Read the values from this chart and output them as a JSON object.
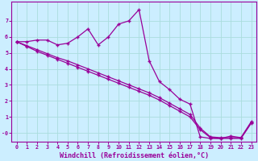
{
  "line_color": "#990099",
  "bg_color": "#cceeff",
  "grid_color": "#aadddd",
  "marker": "+",
  "markersize": 3.5,
  "linewidth": 0.9,
  "bg_color2": "#cce8e8",
  "xlim": [
    -0.5,
    23.5
  ],
  "ylim": [
    -0.55,
    8.2
  ],
  "xlabel": "Windchill (Refroidissement éolien,°C)",
  "xticks": [
    0,
    1,
    2,
    3,
    4,
    5,
    6,
    7,
    8,
    9,
    10,
    11,
    12,
    13,
    14,
    15,
    16,
    17,
    18,
    19,
    20,
    21,
    22,
    23
  ],
  "yticks": [
    0,
    1,
    2,
    3,
    4,
    5,
    6,
    7
  ],
  "tick_fontsize": 4.8,
  "label_fontsize": 6.0,
  "series": [
    {
      "x": [
        0,
        1,
        2,
        3,
        4,
        5,
        6,
        7,
        8,
        9,
        10,
        11,
        12,
        13,
        14,
        15,
        16,
        17,
        18,
        19,
        20,
        21,
        22,
        23
      ],
      "y": [
        5.7,
        5.7,
        5.8,
        5.8,
        5.5,
        5.6,
        6.0,
        6.5,
        5.5,
        6.0,
        6.8,
        7.0,
        7.7,
        4.5,
        3.2,
        2.7,
        2.1,
        1.8,
        -0.25,
        -0.35,
        -0.35,
        -0.2,
        -0.3,
        0.7
      ]
    },
    {
      "x": [
        0,
        1,
        2,
        3,
        4,
        5,
        6,
        7,
        8,
        9,
        10,
        11,
        12,
        13,
        14,
        15,
        16,
        17,
        18,
        19,
        20,
        21,
        22,
        23
      ],
      "y": [
        5.7,
        5.45,
        5.2,
        4.95,
        4.7,
        4.5,
        4.25,
        4.0,
        3.75,
        3.5,
        3.25,
        3.0,
        2.75,
        2.5,
        2.2,
        1.85,
        1.5,
        1.15,
        0.3,
        -0.25,
        -0.3,
        -0.3,
        -0.3,
        0.65
      ]
    },
    {
      "x": [
        0,
        1,
        2,
        3,
        4,
        5,
        6,
        7,
        8,
        9,
        10,
        11,
        12,
        13,
        14,
        15,
        16,
        17,
        18,
        19,
        20,
        21,
        22,
        23
      ],
      "y": [
        5.7,
        5.4,
        5.1,
        4.85,
        4.6,
        4.35,
        4.1,
        3.85,
        3.6,
        3.35,
        3.1,
        2.85,
        2.6,
        2.35,
        2.05,
        1.7,
        1.35,
        1.0,
        0.2,
        -0.3,
        -0.35,
        -0.35,
        -0.35,
        0.6
      ]
    }
  ]
}
